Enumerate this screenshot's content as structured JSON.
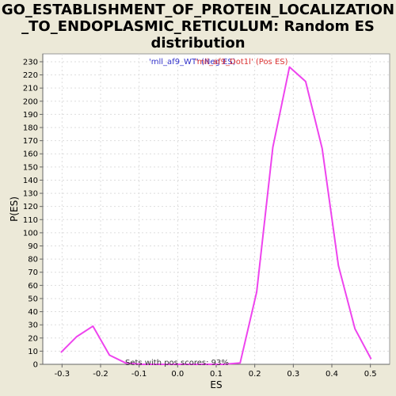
{
  "chart_data": {
    "type": "line",
    "title_lines": [
      "GO_ESTABLISHMENT_OF_PROTEIN_LOCALIZATION",
      "_TO_ENDOPLASMIC_RETICULUM: Random ES",
      "distribution"
    ],
    "xlabel": "ES",
    "ylabel": "P(ES)",
    "xlim": [
      -0.35,
      0.55
    ],
    "ylim": [
      0,
      236
    ],
    "x_ticks": [
      -0.3,
      -0.2,
      -0.1,
      0.0,
      0.1,
      0.2,
      0.3,
      0.4,
      0.5
    ],
    "x_tick_labels": [
      "-0.3",
      "-0.2",
      "-0.1",
      "0.0",
      "0.1",
      "0.2",
      "0.3",
      "0.4",
      "0.5"
    ],
    "y_ticks": [
      0,
      10,
      20,
      30,
      40,
      50,
      60,
      70,
      80,
      90,
      100,
      110,
      120,
      130,
      140,
      150,
      160,
      170,
      180,
      190,
      200,
      210,
      220,
      230
    ],
    "grid": true,
    "legend": [
      {
        "label": "'mll_af9_WT' (Neg ES)",
        "color": "#3333CC"
      },
      {
        "label": "'mll_af9_Dot1l' (Pos ES)",
        "color": "#DD3333"
      }
    ],
    "legend_placement": "top-center",
    "annotation": "Sets with pos scores: 93%",
    "series": [
      {
        "color": "#EE44EE",
        "x": [
          -0.303,
          -0.262,
          -0.22,
          -0.177,
          -0.135,
          -0.093,
          -0.05,
          -0.008,
          0.035,
          0.077,
          0.12,
          0.162,
          0.205,
          0.247,
          0.29,
          0.332,
          0.375,
          0.417,
          0.46,
          0.502
        ],
        "y": [
          9,
          21,
          29,
          7,
          1,
          0,
          0,
          0,
          0,
          0,
          0,
          1,
          55,
          165,
          226,
          215,
          164,
          75,
          27,
          4
        ]
      }
    ]
  }
}
